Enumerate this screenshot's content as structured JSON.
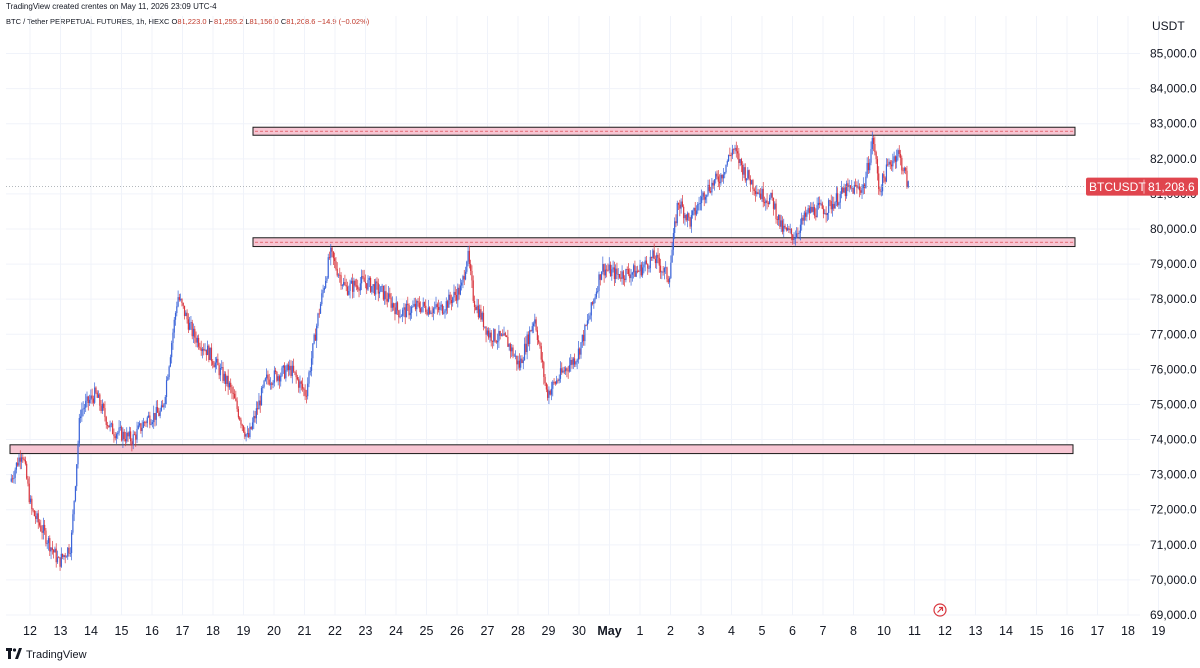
{
  "header": {
    "created_line": "TradingView created crentes on May 11, 2026 23:09 UTC-4"
  },
  "symbol_bar": {
    "title": "BTC / Tether PERPETUAL FUTURES, 1h, HEXC",
    "open_key": "O",
    "open": "81,223.0",
    "high_key": "H",
    "high": "81,255.2",
    "low_key": "L",
    "low": "81,156.0",
    "close_key": "C",
    "close": "81,208.6",
    "change": "−14.9 (−0.02%)"
  },
  "price_axis": {
    "currency": "USDT",
    "labels": [
      "85,000.0",
      "84,000.0",
      "83,000.0",
      "82,000.0",
      "81,000.0",
      "80,000.0",
      "79,000.0",
      "78,000.0",
      "77,000.0",
      "76,000.0",
      "75,000.0",
      "74,000.0",
      "73,000.0",
      "72,000.0",
      "71,000.0",
      "70,000.0",
      "69,000.0"
    ]
  },
  "last_price_badge": {
    "symbol": "BTCUSDT",
    "price": "81,208.6",
    "color": "#e0454e"
  },
  "footer": {
    "brand": "TradingView",
    "logo": "tv-logo"
  },
  "colors": {
    "up": "#3a63d8",
    "down": "#d9363e",
    "zone_fill": "#f7c6d3",
    "zone_stroke": "#1a1a1a",
    "zone_dash": "#d9363e"
  },
  "chart_data": {
    "type": "candlestick",
    "title": "BTC / Tether PERPETUAL FUTURES, 1h, HEXC",
    "x_tick_labels": [
      "12",
      "13",
      "14",
      "15",
      "16",
      "17",
      "18",
      "19",
      "20",
      "21",
      "22",
      "23",
      "24",
      "25",
      "26",
      "27",
      "28",
      "29",
      "30",
      "May",
      "1",
      "2",
      "3",
      "4",
      "5",
      "6",
      "7",
      "8",
      "10",
      "11",
      "12",
      "13",
      "14",
      "15",
      "16",
      "17",
      "18",
      "19"
    ],
    "ylim": [
      69000,
      85500
    ],
    "y_ticks": [
      69000,
      70000,
      71000,
      72000,
      73000,
      74000,
      75000,
      76000,
      77000,
      78000,
      79000,
      80000,
      81000,
      82000,
      83000,
      84000,
      85000
    ],
    "last_price": 81208.6,
    "zones": [
      {
        "low": 82700,
        "high": 82900
      },
      {
        "low": 79500,
        "high": 79750
      },
      {
        "low": 73600,
        "high": 73850
      }
    ],
    "price_path": [
      {
        "day": 0.0,
        "price": 72800
      },
      {
        "day": 0.4,
        "price": 73700
      },
      {
        "day": 0.7,
        "price": 72000
      },
      {
        "day": 1.2,
        "price": 71200
      },
      {
        "day": 1.6,
        "price": 70500
      },
      {
        "day": 2.0,
        "price": 71000
      },
      {
        "day": 2.3,
        "price": 74800
      },
      {
        "day": 2.8,
        "price": 75300
      },
      {
        "day": 3.3,
        "price": 74300
      },
      {
        "day": 4.0,
        "price": 74000
      },
      {
        "day": 4.5,
        "price": 74600
      },
      {
        "day": 5.0,
        "price": 74800
      },
      {
        "day": 5.5,
        "price": 78100
      },
      {
        "day": 6.0,
        "price": 77000
      },
      {
        "day": 6.5,
        "price": 76500
      },
      {
        "day": 7.2,
        "price": 75500
      },
      {
        "day": 7.8,
        "price": 74000
      },
      {
        "day": 8.4,
        "price": 75700
      },
      {
        "day": 9.2,
        "price": 76000
      },
      {
        "day": 9.7,
        "price": 75300
      },
      {
        "day": 10.1,
        "price": 77500
      },
      {
        "day": 10.5,
        "price": 79300
      },
      {
        "day": 11.0,
        "price": 78300
      },
      {
        "day": 11.6,
        "price": 78500
      },
      {
        "day": 12.2,
        "price": 78200
      },
      {
        "day": 12.8,
        "price": 77600
      },
      {
        "day": 13.4,
        "price": 77800
      },
      {
        "day": 14.1,
        "price": 77700
      },
      {
        "day": 14.8,
        "price": 78300
      },
      {
        "day": 15.0,
        "price": 79300
      },
      {
        "day": 15.2,
        "price": 78000
      },
      {
        "day": 15.7,
        "price": 77000
      },
      {
        "day": 16.3,
        "price": 76800
      },
      {
        "day": 16.7,
        "price": 76100
      },
      {
        "day": 17.2,
        "price": 77500
      },
      {
        "day": 17.6,
        "price": 75300
      },
      {
        "day": 18.2,
        "price": 76000
      },
      {
        "day": 18.6,
        "price": 76400
      },
      {
        "day": 19.0,
        "price": 77500
      },
      {
        "day": 19.4,
        "price": 78900
      },
      {
        "day": 19.9,
        "price": 78700
      },
      {
        "day": 20.6,
        "price": 78800
      },
      {
        "day": 21.1,
        "price": 79200
      },
      {
        "day": 21.6,
        "price": 78600
      },
      {
        "day": 21.9,
        "price": 80800
      },
      {
        "day": 22.3,
        "price": 80200
      },
      {
        "day": 22.8,
        "price": 81100
      },
      {
        "day": 23.3,
        "price": 81500
      },
      {
        "day": 23.7,
        "price": 82300
      },
      {
        "day": 24.1,
        "price": 81600
      },
      {
        "day": 24.6,
        "price": 81000
      },
      {
        "day": 25.0,
        "price": 80800
      },
      {
        "day": 25.3,
        "price": 80000
      },
      {
        "day": 25.7,
        "price": 79800
      },
      {
        "day": 26.2,
        "price": 80500
      },
      {
        "day": 26.8,
        "price": 80600
      },
      {
        "day": 27.4,
        "price": 81100
      },
      {
        "day": 28.0,
        "price": 81200
      },
      {
        "day": 28.3,
        "price": 82600
      },
      {
        "day": 28.5,
        "price": 81100
      },
      {
        "day": 28.8,
        "price": 81800
      },
      {
        "day": 29.1,
        "price": 82200
      },
      {
        "day": 29.3,
        "price": 81700
      },
      {
        "day": 29.45,
        "price": 81208.6
      }
    ]
  }
}
